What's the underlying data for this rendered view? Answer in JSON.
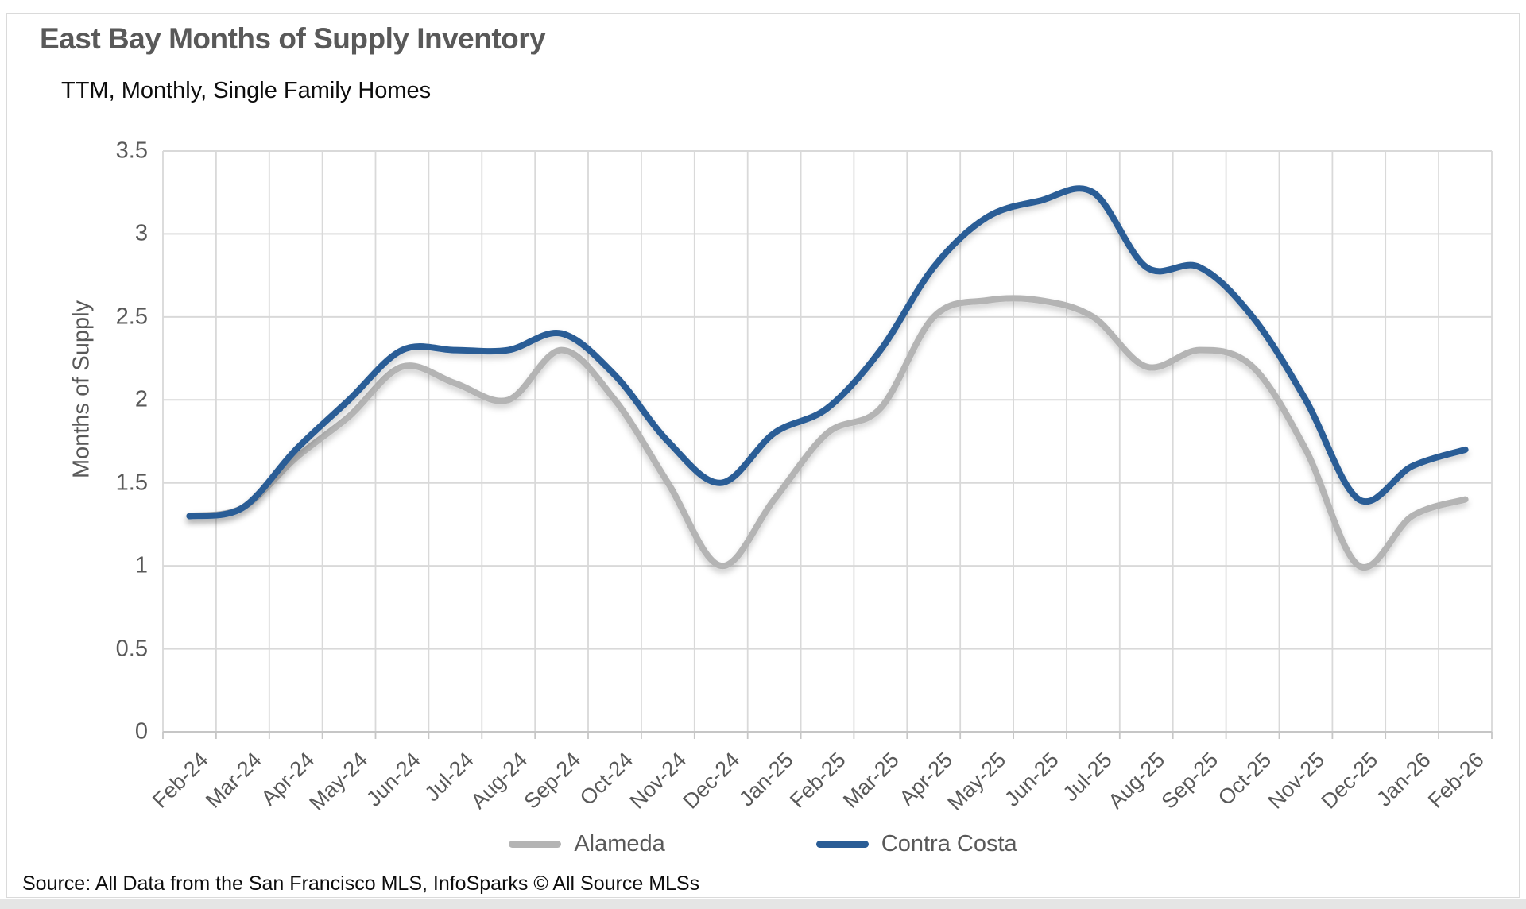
{
  "header": {
    "title": "East Bay Months of Supply Inventory",
    "subtitle": "TTM, Monthly, Single Family Homes"
  },
  "footer": {
    "source": "Source: All Data from the San Francisco MLS, InfoSparks © All Source MLSs"
  },
  "colors": {
    "alameda_line": "#b4b4b4",
    "contra_costa_line": "#2a5d96",
    "gridline": "#d9d9d9",
    "axis_line": "#c6c6c6",
    "axis_text": "#595959",
    "title_text": "#595959"
  },
  "chart_data": {
    "type": "line",
    "title": "East Bay Months of Supply Inventory",
    "subtitle": "TTM, Monthly, Single Family Homes",
    "ylabel": "Months of Supply",
    "xlabel": "",
    "ylim": [
      0,
      3.5
    ],
    "ytick_step": 0.5,
    "grid": true,
    "legend_position": "bottom",
    "x": [
      "Feb-24",
      "Mar-24",
      "Apr-24",
      "May-24",
      "Jun-24",
      "Jul-24",
      "Aug-24",
      "Sep-24",
      "Oct-24",
      "Nov-24",
      "Dec-24",
      "Jan-25",
      "Feb-25",
      "Mar-25",
      "Apr-25",
      "May-25",
      "Jun-25",
      "Jul-25",
      "Aug-25",
      "Sep-25",
      "Oct-25",
      "Nov-25",
      "Dec-25",
      "Jan-26",
      "Feb-26"
    ],
    "series": [
      {
        "name": "Alameda",
        "color": "#b4b4b4",
        "values": [
          1.3,
          1.35,
          1.65,
          1.9,
          2.2,
          2.1,
          2.0,
          2.3,
          2.0,
          1.5,
          1.0,
          1.4,
          1.8,
          1.95,
          2.5,
          2.6,
          2.6,
          2.5,
          2.2,
          2.3,
          2.2,
          1.7,
          1.0,
          1.3,
          1.4
        ]
      },
      {
        "name": "Contra Costa",
        "color": "#2a5d96",
        "values": [
          1.3,
          1.35,
          1.7,
          2.0,
          2.3,
          2.3,
          2.3,
          2.4,
          2.15,
          1.75,
          1.5,
          1.8,
          1.95,
          2.3,
          2.8,
          3.1,
          3.2,
          3.25,
          2.8,
          2.8,
          2.5,
          2.0,
          1.4,
          1.6,
          1.7
        ]
      }
    ]
  }
}
